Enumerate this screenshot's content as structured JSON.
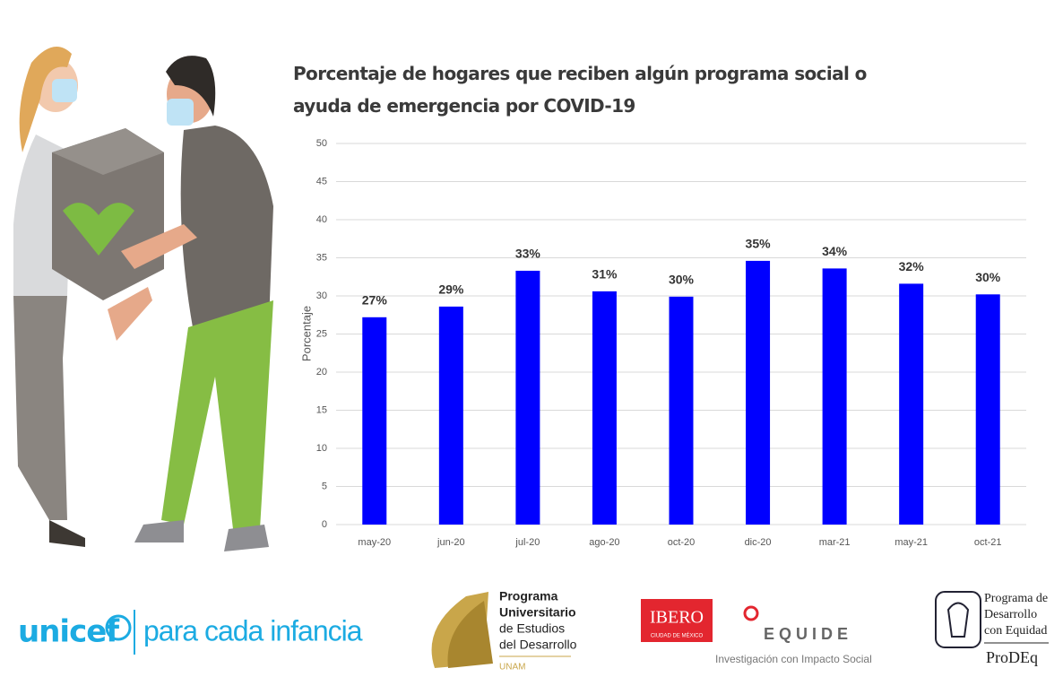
{
  "chart_data": {
    "type": "bar",
    "title": "Porcentaje de hogares que reciben algún programa social o ayuda de emergencia por COVID-19",
    "y_label": "Porcentaje",
    "categories": [
      "may-20",
      "jun-20",
      "jul-20",
      "ago-20",
      "oct-20",
      "dic-20",
      "mar-21",
      "may-21",
      "oct-21"
    ],
    "values": [
      27.2,
      28.6,
      33.3,
      30.6,
      29.9,
      34.6,
      33.6,
      31.6,
      30.2
    ],
    "value_labels": [
      "27%",
      "29%",
      "33%",
      "31%",
      "30%",
      "35%",
      "34%",
      "32%",
      "30%"
    ],
    "color": "#0000ff",
    "ylim": [
      0,
      50
    ],
    "yticks": [
      0,
      5,
      10,
      15,
      20,
      25,
      30,
      35,
      40,
      45,
      50
    ],
    "grid": true
  },
  "logos": {
    "unicef": {
      "name": "unicef",
      "tagline": "para cada infancia"
    },
    "pued": {
      "lines": [
        "Programa",
        "Universitario",
        "de Estudios",
        "del Desarrollo"
      ],
      "org": "UNAM"
    },
    "equide": {
      "ibero": "IBERO",
      "ibero_sub": "CIUDAD DE MÉXICO",
      "name": "E Q U I D E",
      "tagline": "Investigación con Impacto Social"
    },
    "prodeq": {
      "lines": [
        "Programa de",
        "Desarrollo",
        "con Equidad"
      ],
      "name": "ProDEq"
    }
  }
}
